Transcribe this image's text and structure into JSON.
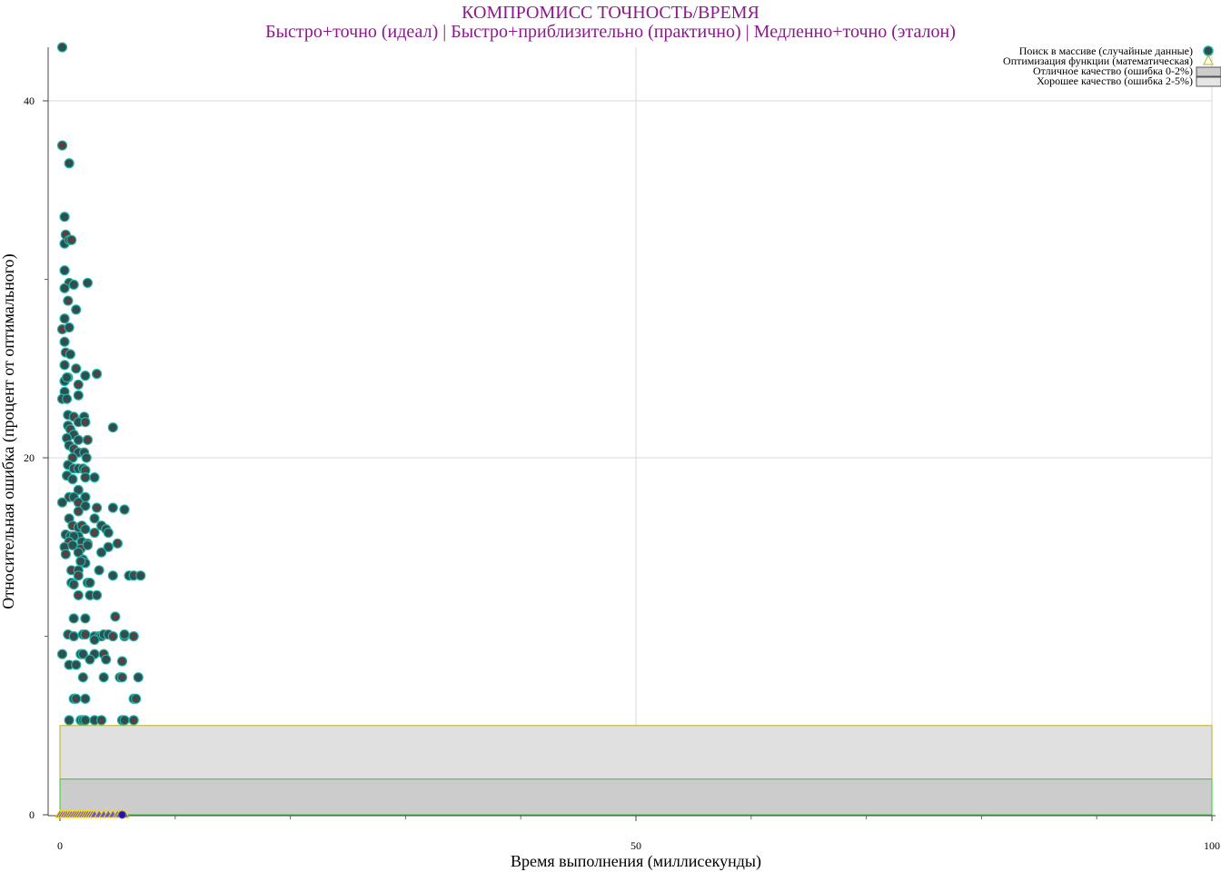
{
  "chart_data": {
    "type": "scatter",
    "title": "КОМПРОМИСС ТОЧНОСТЬ/ВРЕМЯ",
    "subtitle": "Быстро+точно (идеал) | Быстро+приблизительно (практично) | Медленно+точно (эталон)",
    "xlabel": "Время выполнения (миллисекунды)",
    "ylabel": "Относительная ошибка (процент от оптимального)",
    "xlim": [
      0,
      100
    ],
    "ylim": [
      0,
      43
    ],
    "x_ticks": [
      0,
      50,
      100
    ],
    "y_ticks": [
      0,
      20,
      40
    ],
    "grid": true,
    "legend_position": "top-right",
    "colors": {
      "title": "#8b1a8b",
      "marker_fill": "#2f4f4f",
      "marker_edge": "#20b2aa",
      "marker_inner": "#b22222",
      "triangle_fill": "#6a5acd",
      "triangle_edge": "#ffd700",
      "band_excellent_fill": "#cccccc",
      "band_excellent_edge": "#32cd32",
      "band_good_fill": "#e0e0e0",
      "band_good_edge": "#bdb21f",
      "grid": "#d9d9d9"
    },
    "bands": [
      {
        "name": "Отличное качество (ошибка 0-2%)",
        "y0": 0,
        "y1": 2,
        "x0": 0,
        "x1": 100
      },
      {
        "name": "Хорошее качество (ошибка 2-5%)",
        "y0": 2,
        "y1": 5,
        "x0": 0,
        "x1": 100
      }
    ],
    "series": [
      {
        "name": "Поиск в массиве (случайные данные)",
        "marker": "circle",
        "points": [
          [
            0.2,
            43
          ],
          [
            0.2,
            37.5
          ],
          [
            0.8,
            36.5
          ],
          [
            0.4,
            33.5
          ],
          [
            0.5,
            32.5
          ],
          [
            0.4,
            32
          ],
          [
            0.8,
            32.2
          ],
          [
            1,
            32.2
          ],
          [
            0.4,
            30.5
          ],
          [
            2.4,
            29.8
          ],
          [
            0.8,
            29.8
          ],
          [
            1.2,
            29.7
          ],
          [
            0.4,
            29.5
          ],
          [
            0.7,
            28.8
          ],
          [
            1.4,
            28.3
          ],
          [
            0.4,
            27.8
          ],
          [
            0.2,
            27.2
          ],
          [
            0.8,
            27.3
          ],
          [
            0.4,
            26.5
          ],
          [
            0.5,
            25.9
          ],
          [
            0.9,
            25.8
          ],
          [
            0.4,
            25.2
          ],
          [
            1.4,
            25
          ],
          [
            0.7,
            24.5
          ],
          [
            2.2,
            24.6
          ],
          [
            3.2,
            24.7
          ],
          [
            0.4,
            24.3
          ],
          [
            0.6,
            24.5
          ],
          [
            1.6,
            24.1
          ],
          [
            0.4,
            23.7
          ],
          [
            1.6,
            23.5
          ],
          [
            0.2,
            23.3
          ],
          [
            0.6,
            23.3
          ],
          [
            0.7,
            22.4
          ],
          [
            1.2,
            22.3
          ],
          [
            2.1,
            22.3
          ],
          [
            1.6,
            22
          ],
          [
            2.2,
            22
          ],
          [
            0.7,
            21.8
          ],
          [
            4.6,
            21.7
          ],
          [
            0.9,
            21.6
          ],
          [
            1.2,
            21.3
          ],
          [
            0.6,
            21.1
          ],
          [
            2.4,
            21
          ],
          [
            1.6,
            21
          ],
          [
            0.8,
            20.7
          ],
          [
            1.2,
            20.5
          ],
          [
            1.6,
            20.3
          ],
          [
            2.1,
            20.3
          ],
          [
            1.1,
            20
          ],
          [
            2.3,
            20
          ],
          [
            0.7,
            19.6
          ],
          [
            1.2,
            19.4
          ],
          [
            1.6,
            19.4
          ],
          [
            2,
            19.4
          ],
          [
            2.2,
            19.3
          ],
          [
            0.6,
            19
          ],
          [
            1.1,
            18.8
          ],
          [
            2.2,
            18.9
          ],
          [
            3,
            18.9
          ],
          [
            1.6,
            18.2
          ],
          [
            0.8,
            17.8
          ],
          [
            1.2,
            17.8
          ],
          [
            2.2,
            17.8
          ],
          [
            1.6,
            17.5
          ],
          [
            2.2,
            17.3
          ],
          [
            0.2,
            17.5
          ],
          [
            3.2,
            17.2
          ],
          [
            4.6,
            17.2
          ],
          [
            5.6,
            17.1
          ],
          [
            1.6,
            17
          ],
          [
            3,
            16.6
          ],
          [
            0.8,
            16.6
          ],
          [
            1.1,
            16.2
          ],
          [
            3.6,
            16.2
          ],
          [
            1.6,
            16.1
          ],
          [
            1.9,
            16.2
          ],
          [
            2.2,
            16
          ],
          [
            4,
            16
          ],
          [
            3,
            15.8
          ],
          [
            4.2,
            15.8
          ],
          [
            0.5,
            15.7
          ],
          [
            0.9,
            15.6
          ],
          [
            1.6,
            15.6
          ],
          [
            1.2,
            15.6
          ],
          [
            0.8,
            15.3
          ],
          [
            1.9,
            15.3
          ],
          [
            2.4,
            15.2
          ],
          [
            5,
            15.2
          ],
          [
            0.4,
            15
          ],
          [
            1.1,
            15.1
          ],
          [
            1.8,
            14.9
          ],
          [
            2.4,
            15.1
          ],
          [
            4.2,
            15
          ],
          [
            0.5,
            14.6
          ],
          [
            1.6,
            14.7
          ],
          [
            3.6,
            14.7
          ],
          [
            2,
            14.3
          ],
          [
            2.2,
            14.1
          ],
          [
            1.8,
            14.2
          ],
          [
            1,
            13.7
          ],
          [
            1.6,
            13.7
          ],
          [
            3.4,
            13.7
          ],
          [
            1.6,
            13.4
          ],
          [
            4.6,
            13.4
          ],
          [
            6,
            13.4
          ],
          [
            6.4,
            13.4
          ],
          [
            7,
            13.4
          ],
          [
            1,
            13
          ],
          [
            1.2,
            12.9
          ],
          [
            2.4,
            13
          ],
          [
            2.6,
            13
          ],
          [
            1.6,
            12.3
          ],
          [
            2.6,
            12.3
          ],
          [
            3.2,
            12.3
          ],
          [
            4.8,
            11.1
          ],
          [
            1.2,
            11
          ],
          [
            2.2,
            11
          ],
          [
            0.7,
            10.1
          ],
          [
            1.2,
            10
          ],
          [
            2,
            10.1
          ],
          [
            2.2,
            10.1
          ],
          [
            3,
            10
          ],
          [
            3.4,
            10
          ],
          [
            3.6,
            10
          ],
          [
            3.8,
            10.1
          ],
          [
            4.2,
            10.1
          ],
          [
            4.6,
            10
          ],
          [
            5.6,
            10
          ],
          [
            5.6,
            10.1
          ],
          [
            6.4,
            10
          ],
          [
            3,
            9.8
          ],
          [
            0.2,
            9
          ],
          [
            1.8,
            9
          ],
          [
            2,
            9
          ],
          [
            3,
            9
          ],
          [
            3.8,
            9
          ],
          [
            2.6,
            8.7
          ],
          [
            4,
            8.7
          ],
          [
            5.4,
            8.6
          ],
          [
            0.8,
            8.4
          ],
          [
            1.4,
            8.4
          ],
          [
            2,
            7.7
          ],
          [
            3.8,
            7.7
          ],
          [
            5.2,
            7.7
          ],
          [
            5.4,
            7.7
          ],
          [
            6.8,
            7.7
          ],
          [
            1.2,
            6.5
          ],
          [
            1.4,
            6.5
          ],
          [
            2.2,
            6.5
          ],
          [
            6.4,
            6.5
          ],
          [
            6.6,
            6.5
          ],
          [
            0.8,
            5.3
          ],
          [
            1.8,
            5.3
          ],
          [
            2,
            5.3
          ],
          [
            2.2,
            5.3
          ],
          [
            3,
            5.3
          ],
          [
            3.6,
            5.3
          ],
          [
            5.4,
            5.3
          ],
          [
            5.6,
            5.3
          ],
          [
            6.4,
            5.3
          ]
        ]
      },
      {
        "name": "Оптимизация функции (математическая)",
        "marker": "triangle",
        "points": [
          [
            0,
            0
          ],
          [
            0.2,
            0
          ],
          [
            0.4,
            0
          ],
          [
            0.6,
            0
          ],
          [
            0.8,
            0
          ],
          [
            1,
            0
          ],
          [
            1.2,
            0
          ],
          [
            1.4,
            0
          ],
          [
            1.6,
            0
          ],
          [
            1.8,
            0
          ],
          [
            2,
            0
          ],
          [
            2.2,
            0
          ],
          [
            2.4,
            0
          ],
          [
            2.6,
            0
          ],
          [
            2.8,
            0
          ],
          [
            3,
            0
          ],
          [
            3.4,
            0
          ],
          [
            3.8,
            0
          ],
          [
            4.2,
            0
          ],
          [
            4.6,
            0
          ],
          [
            5,
            0
          ],
          [
            5.2,
            0
          ],
          [
            5.6,
            0
          ]
        ]
      }
    ]
  }
}
